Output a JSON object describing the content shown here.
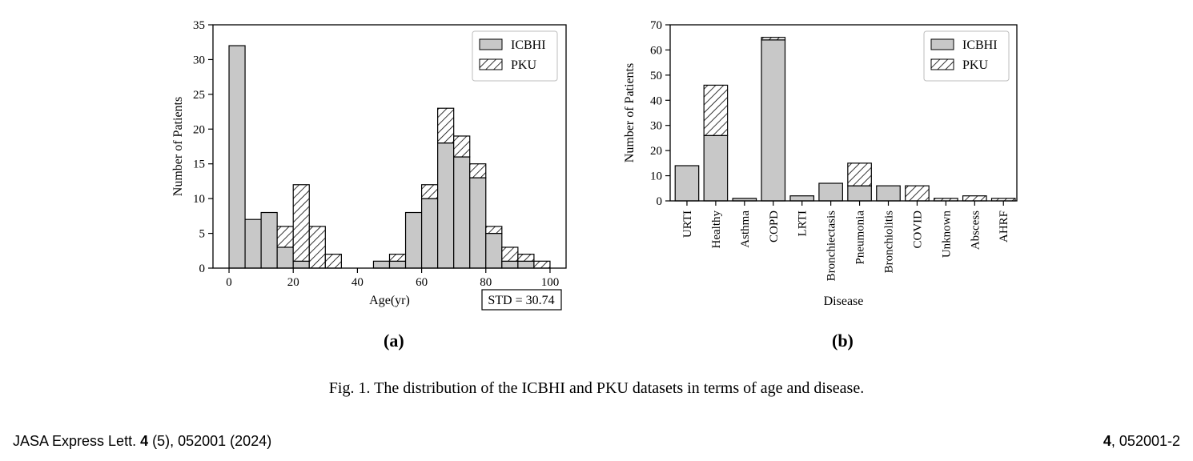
{
  "chart_data": [
    {
      "type": "bar",
      "stacked": true,
      "panel_label": "(a)",
      "xlabel": "Age(yr)",
      "ylabel": "Number of Patients",
      "xlim": [
        -5,
        105
      ],
      "ylim": [
        0,
        35
      ],
      "x_ticks": [
        0,
        20,
        40,
        60,
        80,
        100
      ],
      "y_ticks": [
        0,
        5,
        10,
        15,
        20,
        25,
        30,
        35
      ],
      "bin_width": 5,
      "bin_starts": [
        0,
        5,
        10,
        15,
        20,
        25,
        30,
        35,
        40,
        45,
        50,
        55,
        60,
        65,
        70,
        75,
        80,
        85,
        90,
        95
      ],
      "series": [
        {
          "name": "ICBHI",
          "pattern": "solid-gray",
          "values": [
            32,
            7,
            8,
            3,
            1,
            0,
            0,
            0,
            0,
            1,
            1,
            8,
            10,
            18,
            16,
            13,
            5,
            1,
            1,
            0
          ]
        },
        {
          "name": "PKU",
          "pattern": "hatched",
          "values": [
            0,
            0,
            0,
            3,
            11,
            6,
            2,
            0,
            0,
            0,
            1,
            0,
            2,
            5,
            3,
            2,
            1,
            2,
            1,
            1
          ]
        }
      ],
      "legend": {
        "position": "top-right",
        "entries": [
          "ICBHI",
          "PKU"
        ]
      },
      "annotation": "STD = 30.74",
      "grid": false
    },
    {
      "type": "bar",
      "stacked": true,
      "panel_label": "(b)",
      "xlabel": "Disease",
      "ylabel": "Number of Patients",
      "ylim": [
        0,
        70
      ],
      "y_ticks": [
        0,
        10,
        20,
        30,
        40,
        50,
        60,
        70
      ],
      "categories": [
        "URTI",
        "Healthy",
        "Asthma",
        "COPD",
        "LRTI",
        "Bronchiectasis",
        "Pneumonia",
        "Bronchiolitis",
        "COVID",
        "Unknown",
        "Abscess",
        "AHRF"
      ],
      "series": [
        {
          "name": "ICBHI",
          "pattern": "solid-gray",
          "values": [
            14,
            26,
            1,
            64,
            2,
            7,
            6,
            6,
            0,
            0,
            0,
            0
          ]
        },
        {
          "name": "PKU",
          "pattern": "hatched",
          "values": [
            0,
            20,
            0,
            1,
            0,
            0,
            9,
            0,
            6,
            1,
            2,
            1
          ]
        }
      ],
      "legend": {
        "position": "top-right",
        "entries": [
          "ICBHI",
          "PKU"
        ]
      },
      "grid": false
    }
  ],
  "colors": {
    "icbhi_fill": "#c8c8c8",
    "pku_hatch": "#000000",
    "axis": "#000000"
  },
  "caption": "Fig. 1. The distribution of the ICBHI and PKU datasets in terms of age and disease.",
  "footer": {
    "journal": "JASA Express Lett.",
    "volume": "4",
    "issue_article": " (5), 052001 (2024)",
    "page_volume": "4",
    "page_rest": ", 052001-2"
  }
}
